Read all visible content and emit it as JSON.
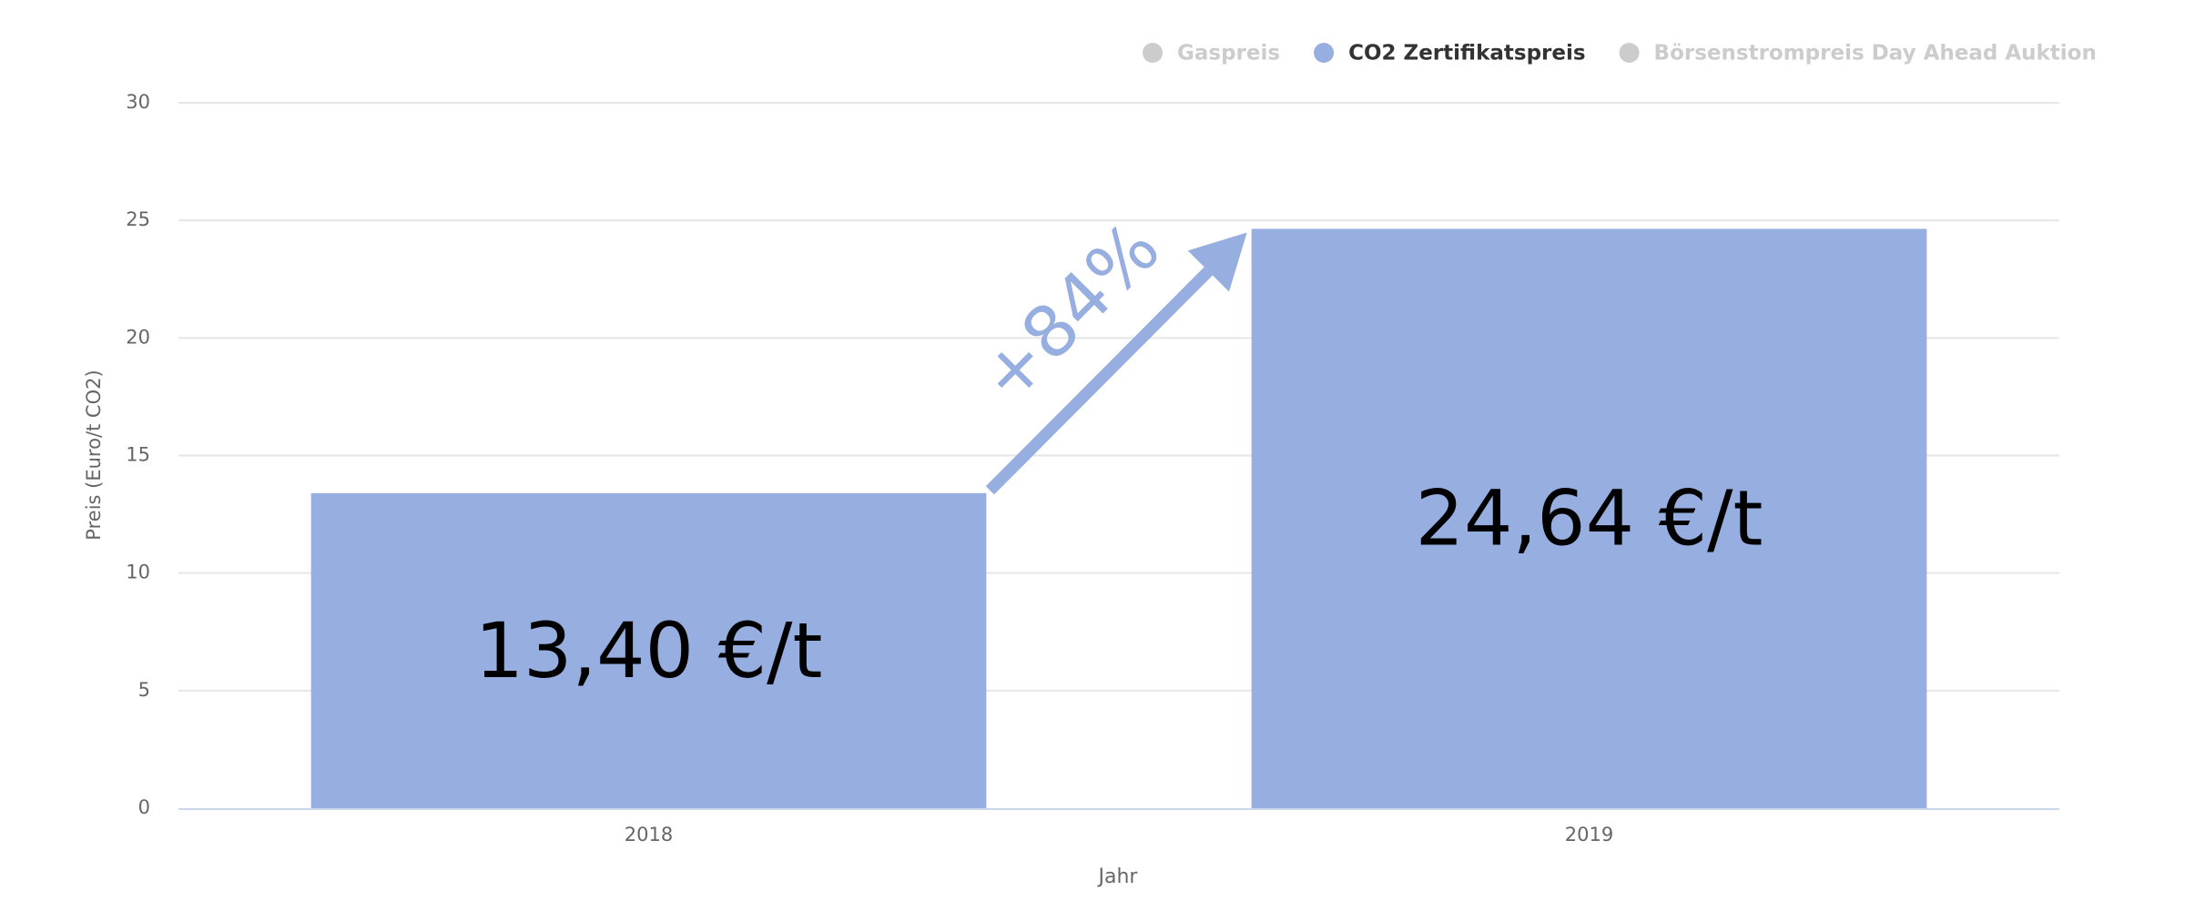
{
  "chart_data": {
    "type": "bar",
    "categories": [
      "2018",
      "2019"
    ],
    "series": [
      {
        "name": "Gaspreis",
        "color": "#cccccc",
        "visible": false,
        "values": [
          null,
          null
        ]
      },
      {
        "name": "CO2 Zertifikatspreis",
        "color": "#97aee0",
        "visible": true,
        "values": [
          13.4,
          24.64
        ],
        "value_labels": [
          "13,40 €/t",
          "24,64 €/t"
        ]
      },
      {
        "name": "Börsenstrompreis Day Ahead Auktion",
        "color": "#cccccc",
        "visible": false,
        "values": [
          null,
          null
        ]
      }
    ],
    "annotation": "+84%",
    "y_label": "Preis (Euro/t CO2)",
    "x_label": "Jahr",
    "ylim": [
      0,
      30
    ],
    "yticks": [
      0,
      5,
      10,
      15,
      20,
      25,
      30
    ],
    "grid": true,
    "legend": "top-right"
  }
}
